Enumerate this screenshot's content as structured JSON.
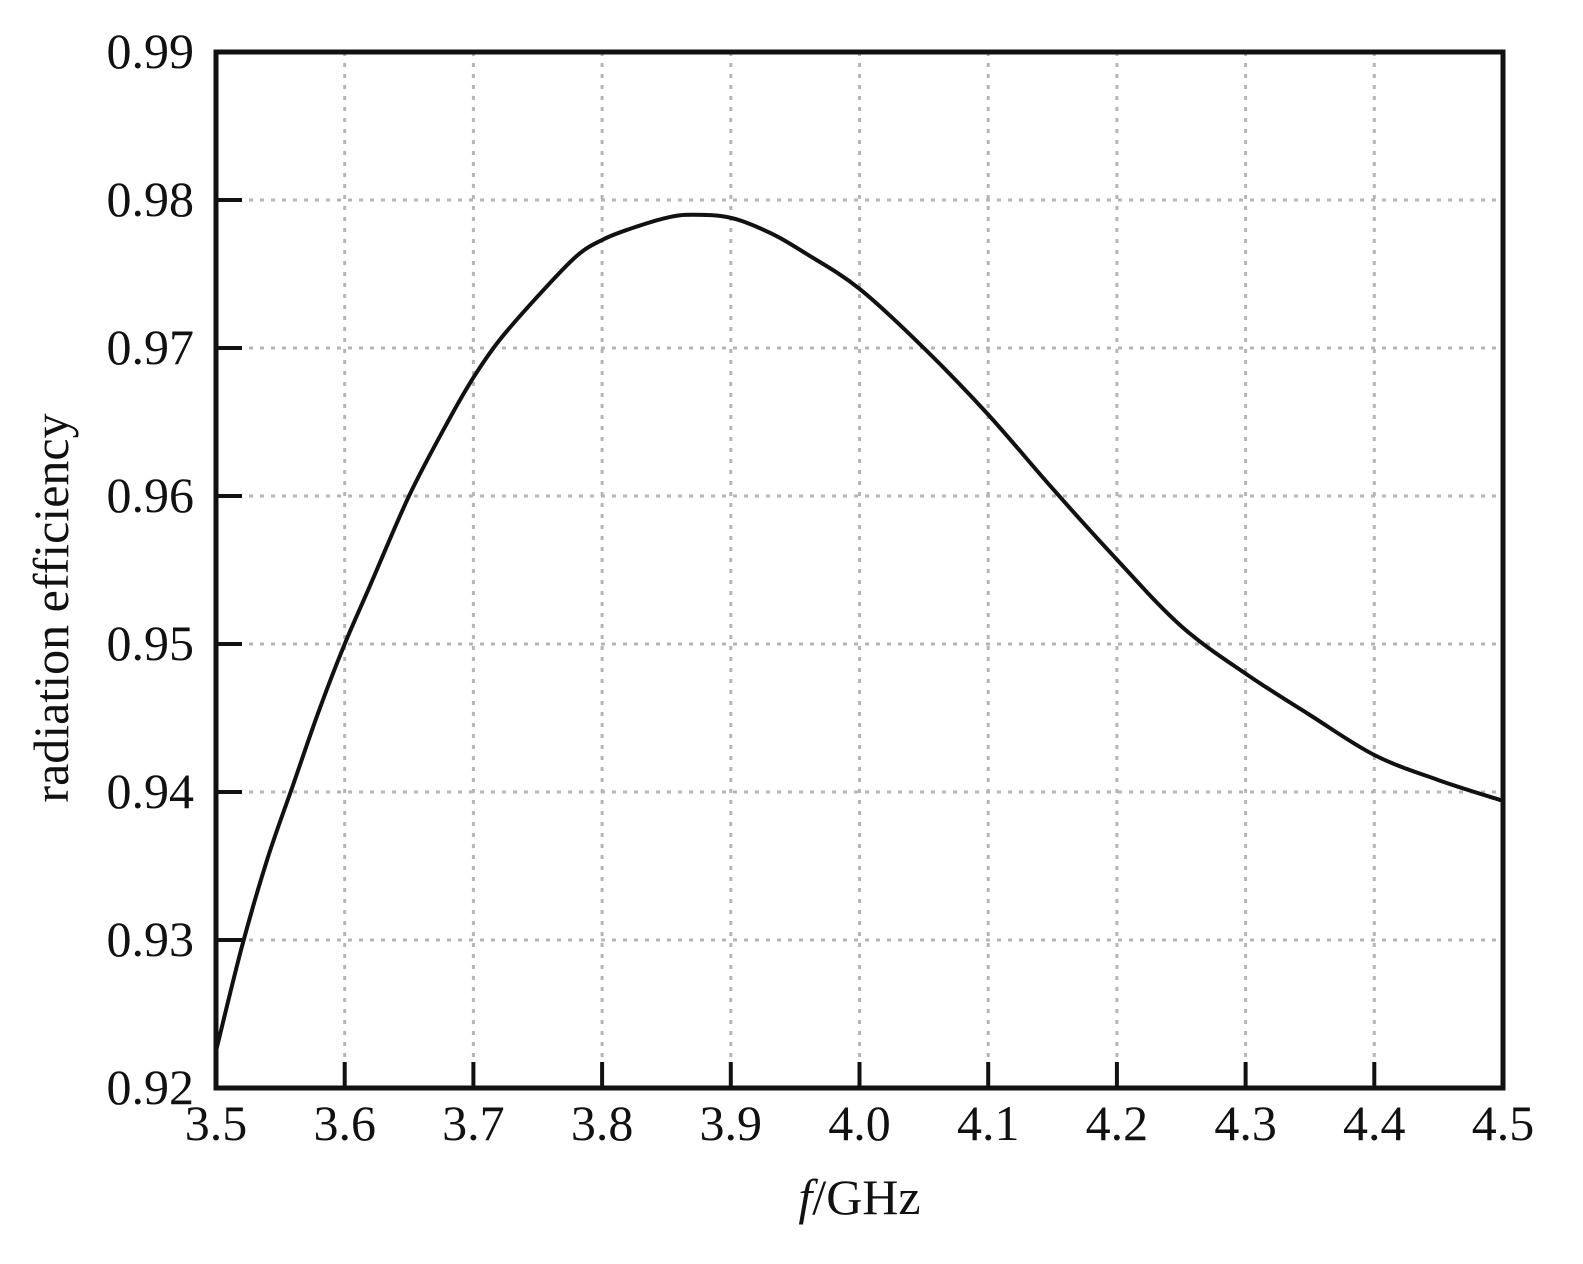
{
  "chart_data": {
    "type": "line",
    "title": "",
    "xlabel_italic": "f",
    "xlabel_rest": "/GHz",
    "ylabel": "radiation efficiency",
    "xlim": [
      3.5,
      4.5
    ],
    "ylim": [
      0.92,
      0.99
    ],
    "x_ticks": [
      3.5,
      3.6,
      3.7,
      3.8,
      3.9,
      4.0,
      4.1,
      4.2,
      4.3,
      4.4,
      4.5
    ],
    "x_tick_labels": [
      "3.5",
      "3.6",
      "3.7",
      "3.8",
      "3.9",
      "4.0",
      "4.1",
      "4.2",
      "4.3",
      "4.4",
      "4.5"
    ],
    "y_ticks": [
      0.92,
      0.93,
      0.94,
      0.95,
      0.96,
      0.97,
      0.98,
      0.99
    ],
    "y_tick_labels": [
      "0.92",
      "0.93",
      "0.94",
      "0.95",
      "0.96",
      "0.97",
      "0.98",
      "0.99"
    ],
    "grid": true,
    "legend": "none",
    "series": [
      {
        "color": "#111111",
        "x": [
          3.5,
          3.52,
          3.54,
          3.56,
          3.58,
          3.6,
          3.62,
          3.65,
          3.68,
          3.7,
          3.72,
          3.75,
          3.78,
          3.8,
          3.82,
          3.85,
          3.87,
          3.9,
          3.93,
          3.96,
          4.0,
          4.05,
          4.1,
          4.15,
          4.2,
          4.25,
          4.3,
          4.35,
          4.4,
          4.45,
          4.5
        ],
        "y": [
          0.9225,
          0.9295,
          0.9355,
          0.9405,
          0.9455,
          0.95,
          0.954,
          0.96,
          0.965,
          0.968,
          0.9705,
          0.9735,
          0.9762,
          0.9773,
          0.978,
          0.9788,
          0.979,
          0.9788,
          0.9778,
          0.9763,
          0.974,
          0.97,
          0.9655,
          0.9605,
          0.9557,
          0.9512,
          0.948,
          0.9452,
          0.9425,
          0.9408,
          0.9394
        ]
      }
    ]
  }
}
